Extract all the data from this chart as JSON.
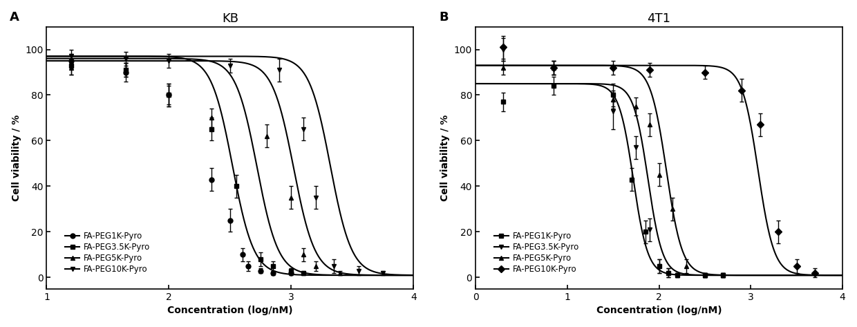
{
  "panel_A": {
    "title": "KB",
    "xlabel": "Concentration (log/nM)",
    "ylabel": "Cell viability / %",
    "label": "A",
    "xlim": [
      1,
      4
    ],
    "ylim": [
      -5,
      110
    ],
    "xticks": [
      1,
      2,
      3,
      4
    ],
    "yticks": [
      0,
      20,
      40,
      60,
      80,
      100
    ],
    "series": [
      {
        "label": "FA-PEG1K-Pyro",
        "marker": "o",
        "ec50_log": 2.52,
        "hill": 5.0,
        "top": 97,
        "bottom": 1,
        "x_data": [
          1.2,
          1.65,
          2.0,
          2.35,
          2.5,
          2.6,
          2.65,
          2.75,
          2.85,
          3.0
        ],
        "y_data": [
          95,
          90,
          80,
          43,
          25,
          10,
          5,
          3,
          2,
          2
        ],
        "y_err": [
          3,
          4,
          5,
          5,
          5,
          3,
          2,
          1,
          1,
          1
        ]
      },
      {
        "label": "FA-PEG3.5K-Pyro",
        "marker": "s",
        "ec50_log": 2.72,
        "hill": 5.0,
        "top": 96,
        "bottom": 1,
        "x_data": [
          1.2,
          1.65,
          2.0,
          2.35,
          2.55,
          2.75,
          2.85,
          3.0,
          3.1
        ],
        "y_data": [
          93,
          91,
          80,
          65,
          40,
          8,
          5,
          3,
          2
        ],
        "y_err": [
          4,
          3,
          5,
          5,
          5,
          3,
          2,
          1,
          1
        ]
      },
      {
        "label": "FA-PEG5K-Pyro",
        "marker": "^",
        "ec50_log": 3.02,
        "hill": 5.0,
        "top": 95,
        "bottom": 1,
        "x_data": [
          1.2,
          1.65,
          2.0,
          2.35,
          2.8,
          3.0,
          3.1,
          3.2,
          3.4
        ],
        "y_data": [
          92,
          91,
          80,
          70,
          62,
          35,
          10,
          5,
          2
        ],
        "y_err": [
          3,
          3,
          4,
          4,
          5,
          5,
          3,
          2,
          1
        ]
      },
      {
        "label": "FA-PEG10K-Pyro",
        "marker": "v",
        "ec50_log": 3.32,
        "hill": 5.0,
        "top": 97,
        "bottom": 1,
        "x_data": [
          1.2,
          1.65,
          2.0,
          2.5,
          2.9,
          3.1,
          3.2,
          3.35,
          3.55,
          3.75
        ],
        "y_data": [
          97,
          96,
          95,
          93,
          91,
          65,
          35,
          5,
          3,
          2
        ],
        "y_err": [
          3,
          3,
          3,
          3,
          5,
          5,
          5,
          3,
          2,
          1
        ]
      }
    ]
  },
  "panel_B": {
    "title": "4T1",
    "xlabel": "Concentration (log/nM)",
    "ylabel": "Cell viability / %",
    "label": "B",
    "xlim": [
      0,
      4
    ],
    "ylim": [
      -5,
      110
    ],
    "xticks": [
      0,
      1,
      2,
      3,
      4
    ],
    "yticks": [
      0,
      20,
      40,
      60,
      80,
      100
    ],
    "series": [
      {
        "label": "FA-PEG1K-Pyro",
        "marker": "s",
        "ec50_log": 1.72,
        "hill": 5.5,
        "top": 85,
        "bottom": 1,
        "x_data": [
          0.3,
          0.85,
          1.5,
          1.7,
          1.85,
          2.0,
          2.1,
          2.2,
          2.5,
          2.7
        ],
        "y_data": [
          77,
          84,
          80,
          43,
          20,
          5,
          2,
          1,
          1,
          1
        ],
        "y_err": [
          4,
          4,
          5,
          5,
          5,
          3,
          2,
          1,
          1,
          1
        ]
      },
      {
        "label": "FA-PEG3.5K-Pyro",
        "marker": "v",
        "ec50_log": 1.88,
        "hill": 5.5,
        "top": 85,
        "bottom": 1,
        "x_data": [
          0.3,
          0.85,
          1.5,
          1.75,
          1.9,
          2.0,
          2.1,
          2.2,
          2.5,
          2.7
        ],
        "y_data": [
          100,
          92,
          73,
          57,
          21,
          5,
          2,
          1,
          1,
          1
        ],
        "y_err": [
          5,
          3,
          8,
          5,
          5,
          3,
          2,
          1,
          1,
          1
        ]
      },
      {
        "label": "FA-PEG5K-Pyro",
        "marker": "^",
        "ec50_log": 2.08,
        "hill": 5.0,
        "top": 93,
        "bottom": 1,
        "x_data": [
          0.3,
          0.85,
          1.5,
          1.75,
          1.9,
          2.0,
          2.15,
          2.3,
          2.5,
          2.7
        ],
        "y_data": [
          92,
          92,
          78,
          75,
          67,
          45,
          30,
          5,
          1,
          1
        ],
        "y_err": [
          3,
          3,
          4,
          4,
          5,
          5,
          5,
          3,
          1,
          1
        ]
      },
      {
        "label": "FA-PEG10K-Pyro",
        "marker": "D",
        "ec50_log": 3.08,
        "hill": 5.0,
        "top": 93,
        "bottom": 1,
        "x_data": [
          0.3,
          0.85,
          1.5,
          1.9,
          2.5,
          2.9,
          3.1,
          3.3,
          3.5,
          3.7
        ],
        "y_data": [
          101,
          92,
          92,
          91,
          90,
          82,
          67,
          20,
          5,
          2
        ],
        "y_err": [
          5,
          3,
          3,
          3,
          3,
          5,
          5,
          5,
          3,
          2
        ]
      }
    ]
  },
  "line_color": "#000000",
  "marker_color": "#000000",
  "marker_size": 5,
  "line_width": 1.5,
  "font_size": 10,
  "title_font_size": 13,
  "label_font_size": 13,
  "legend_fontsize": 8.5
}
